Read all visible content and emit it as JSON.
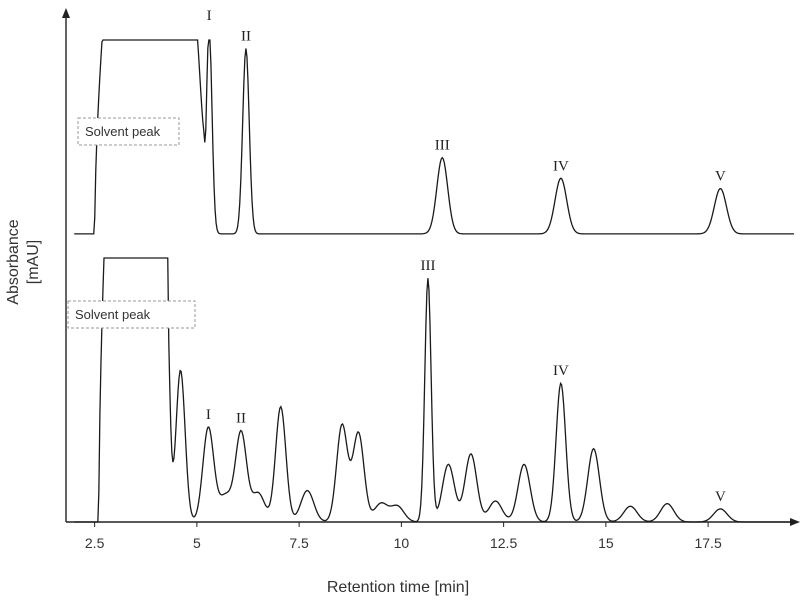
{
  "chart_data": {
    "type": "line",
    "xlabel": "Retention time [min]",
    "ylabel_line1": "Absorbance",
    "ylabel_line2": "[mAU]",
    "xlim": [
      1.8,
      19.6
    ],
    "xticks": [
      2.5,
      5,
      7.5,
      10,
      12.5,
      15,
      17.5
    ],
    "xtick_labels": [
      "2.5",
      "5",
      "7.5",
      "10",
      "12.5",
      "15",
      "17.5"
    ],
    "annotation_text": "Solvent peak",
    "series": [
      {
        "baseline": 0.02,
        "solvent_peak": {
          "start": 2.5,
          "end": 5.2,
          "apex": 3.2
        },
        "peaks": [
          {
            "label": "I",
            "rt": 5.3,
            "height": 1.0
          },
          {
            "label": "II",
            "rt": 6.2,
            "height": 0.9
          },
          {
            "label": "III",
            "rt": 11.0,
            "height": 0.37
          },
          {
            "label": "IV",
            "rt": 13.9,
            "height": 0.27
          },
          {
            "label": "V",
            "rt": 17.8,
            "height": 0.22
          }
        ]
      },
      {
        "baseline": 0.0,
        "solvent_peak": {
          "start": 2.6,
          "end": 4.3,
          "apex": 3.5
        },
        "peaks": [
          {
            "label": "",
            "rt": 4.25,
            "height": 0.96
          },
          {
            "label": "",
            "rt": 4.6,
            "height": 0.58
          },
          {
            "label": "I",
            "rt": 5.28,
            "height": 0.36
          },
          {
            "label": "",
            "rt": 5.7,
            "height": 0.1
          },
          {
            "label": "II",
            "rt": 6.08,
            "height": 0.34
          },
          {
            "label": "",
            "rt": 6.5,
            "height": 0.11
          },
          {
            "label": "",
            "rt": 7.05,
            "height": 0.44
          },
          {
            "label": "",
            "rt": 7.7,
            "height": 0.12
          },
          {
            "label": "",
            "rt": 8.55,
            "height": 0.37
          },
          {
            "label": "",
            "rt": 8.95,
            "height": 0.34
          },
          {
            "label": "",
            "rt": 9.5,
            "height": 0.07
          },
          {
            "label": "",
            "rt": 9.9,
            "height": 0.06
          },
          {
            "label": "III",
            "rt": 10.65,
            "height": 0.93
          },
          {
            "label": "",
            "rt": 11.15,
            "height": 0.22
          },
          {
            "label": "",
            "rt": 11.7,
            "height": 0.26
          },
          {
            "label": "",
            "rt": 12.3,
            "height": 0.08
          },
          {
            "label": "",
            "rt": 13.0,
            "height": 0.22
          },
          {
            "label": "IV",
            "rt": 13.9,
            "height": 0.53
          },
          {
            "label": "",
            "rt": 14.7,
            "height": 0.28
          },
          {
            "label": "",
            "rt": 15.6,
            "height": 0.06
          },
          {
            "label": "",
            "rt": 16.5,
            "height": 0.07
          },
          {
            "label": "V",
            "rt": 17.8,
            "height": 0.05
          }
        ]
      }
    ]
  }
}
